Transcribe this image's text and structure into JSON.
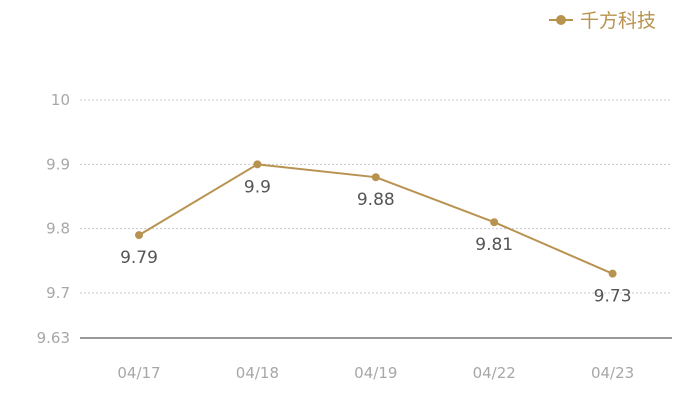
{
  "chart_data": {
    "type": "line",
    "categories": [
      "04/17",
      "04/18",
      "04/19",
      "04/22",
      "04/23"
    ],
    "series": [
      {
        "name": "千方科技",
        "values": [
          9.79,
          9.9,
          9.88,
          9.81,
          9.73
        ]
      }
    ],
    "data_labels": [
      "9.79",
      "9.9",
      "9.88",
      "9.81",
      "9.73"
    ],
    "y_ticks": [
      9.63,
      9.7,
      9.8,
      9.9,
      10
    ],
    "y_tick_labels": [
      "9.63",
      "9.7",
      "9.8",
      "9.9",
      "10"
    ],
    "ylim": [
      9.63,
      10
    ],
    "grid": "horizontal dotted",
    "legend_position": "top-right",
    "colors": {
      "series": "#b89350",
      "grid": "#c8c8c8",
      "baseline": "#333333",
      "tick_text": "#a7a7a7",
      "data_label_text": "#555555"
    }
  }
}
